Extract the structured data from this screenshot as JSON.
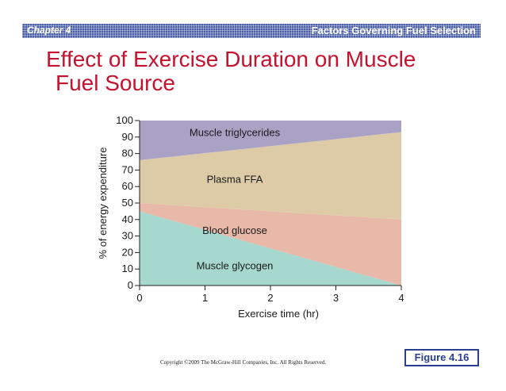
{
  "header": {
    "chapter": "Chapter 4",
    "section": "Factors Governing Fuel Selection"
  },
  "title": {
    "line1": "Effect of Exercise Duration on Muscle",
    "line2": "Fuel Source"
  },
  "chart_data": {
    "type": "area",
    "stacked": true,
    "x": [
      0,
      4
    ],
    "xlabel": "Exercise time (hr)",
    "ylabel": "% of energy expenditure",
    "xlim": [
      0,
      4
    ],
    "ylim": [
      0,
      100
    ],
    "xticks": [
      0,
      1,
      2,
      3,
      4
    ],
    "yticks": [
      0,
      10,
      20,
      30,
      40,
      50,
      60,
      70,
      80,
      90,
      100
    ],
    "grid": false,
    "series": [
      {
        "name": "Muscle glycogen",
        "values": [
          45,
          0
        ],
        "color": "#a6d8d0"
      },
      {
        "name": "Blood glucose",
        "values": [
          5,
          40
        ],
        "color": "#e8b8a8"
      },
      {
        "name": "Plasma FFA",
        "values": [
          26,
          53
        ],
        "color": "#dccba6"
      },
      {
        "name": "Muscle triglycerides",
        "values": [
          24,
          7
        ],
        "color": "#a9a2c4"
      }
    ]
  },
  "footer": {
    "copyright": "Copyright ©2009 The McGraw-Hill Companies, Inc. All Rights Reserved.",
    "figure": "Figure 4.16"
  }
}
